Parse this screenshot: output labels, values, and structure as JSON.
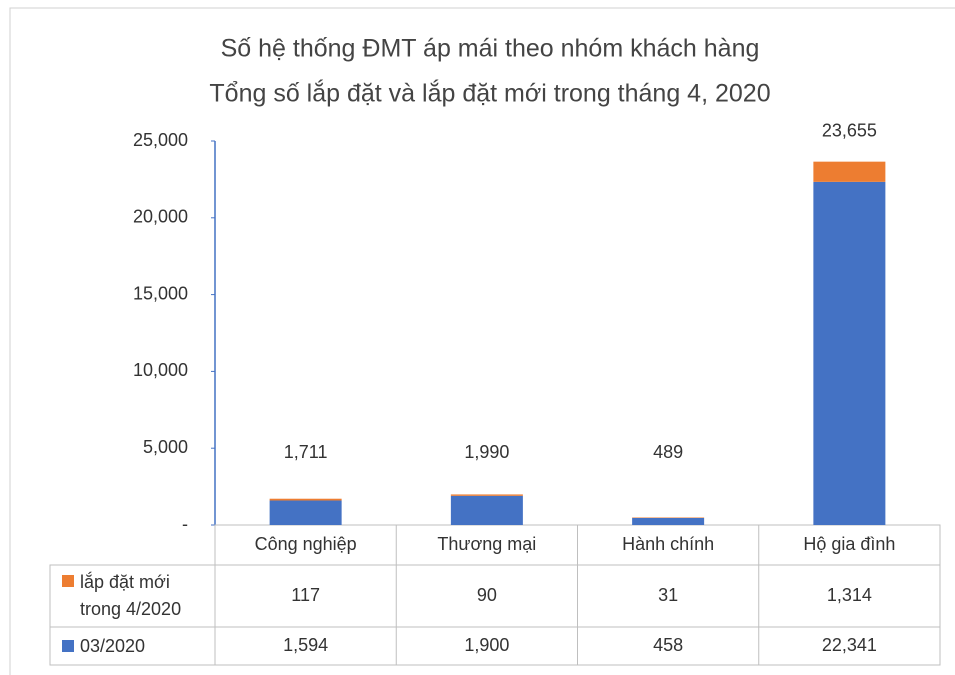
{
  "chart_data": {
    "type": "stacked_bar",
    "title": "Số hệ thống ĐMT áp mái theo nhóm khách hàng",
    "subtitle": "Tổng số lắp đặt và lắp đặt mới trong tháng 4, 2020",
    "categories": [
      "Công nghiệp",
      "Thương mại",
      "Hành chính",
      "Hộ gia đình"
    ],
    "series": [
      {
        "name": "03/2020",
        "color": "#4472c4",
        "values": [
          1594,
          1900,
          458,
          22341
        ],
        "value_labels": [
          "1,594",
          "1,900",
          "458",
          "22,341"
        ]
      },
      {
        "name": "lắp đặt mới trong 4/2020",
        "color": "#ed7d31",
        "values": [
          117,
          90,
          31,
          1314
        ],
        "value_labels": [
          "117",
          "90",
          "31",
          "1,314"
        ]
      }
    ],
    "totals": [
      1711,
      1990,
      489,
      23655
    ],
    "total_labels": [
      "1,711",
      "1,990",
      "489",
      "23,655"
    ],
    "ylim": [
      0,
      25000
    ],
    "yticks": [
      {
        "value": 0,
        "label": "-"
      },
      {
        "value": 5000,
        "label": "5,000"
      },
      {
        "value": 10000,
        "label": "10,000"
      },
      {
        "value": 15000,
        "label": "15,000"
      },
      {
        "value": 20000,
        "label": "20,000"
      },
      {
        "value": 25000,
        "label": "25,000"
      }
    ],
    "grid": false
  }
}
